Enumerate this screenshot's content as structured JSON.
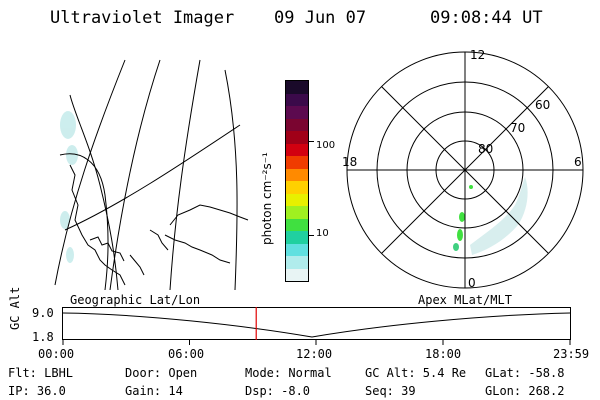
{
  "header": {
    "title": "Ultraviolet Imager",
    "date": "09 Jun 07",
    "time": "09:08:44 UT"
  },
  "colorbar": {
    "label": "photon cm⁻²s⁻¹",
    "ticks": [
      {
        "label": "100",
        "value": 100
      },
      {
        "label": "10",
        "value": 10
      }
    ],
    "colors": [
      "#1a0a2a",
      "#3b0a4a",
      "#5c0a4f",
      "#7a0530",
      "#a00018",
      "#d20010",
      "#f03c00",
      "#ff8a00",
      "#ffd000",
      "#e8f000",
      "#a0f020",
      "#40e040",
      "#20d0a0",
      "#60e0e0",
      "#b0ecec",
      "#e8f4f4"
    ]
  },
  "geo_panel": {
    "label": "Geographic Lat/Lon"
  },
  "polar_panel": {
    "label": "Apex MLat/MLT",
    "mlt_labels": {
      "top": "12",
      "left": "18",
      "right": "6",
      "bottom": "0"
    },
    "lat_labels": [
      "60",
      "70",
      "80"
    ]
  },
  "alt_plot": {
    "ylabel": "GC Alt",
    "yticks": [
      "9.0",
      "1.8"
    ],
    "xticks": [
      "00:00",
      "06:00",
      "12:00",
      "18:00",
      "23:59"
    ],
    "current_marker_hour": 9.146
  },
  "info": {
    "flt": "Flt: LBHL",
    "door": "Door: Open",
    "mode": "Mode: Normal",
    "gc_alt": "GC Alt: 5.4 Re",
    "glat": "GLat: -58.8",
    "ip": "IP: 36.0",
    "gain": "Gain: 14",
    "dsp": "Dsp:  -8.0",
    "seq": "Seq: 39",
    "glon": "GLon: 268.2"
  }
}
